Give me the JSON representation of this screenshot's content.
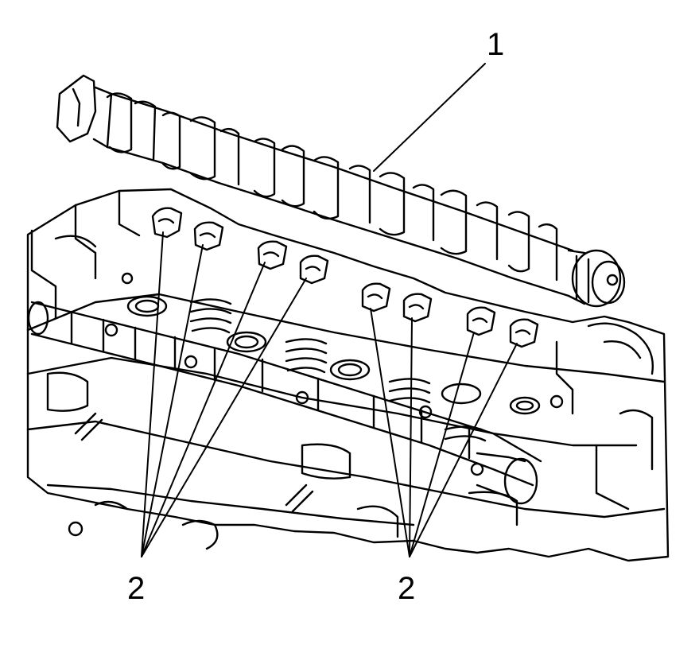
{
  "callouts": {
    "camshaft": "1",
    "rocker_group_left": "2",
    "rocker_group_right": "2"
  },
  "colors": {
    "line": "#000000",
    "background": "#ffffff"
  }
}
